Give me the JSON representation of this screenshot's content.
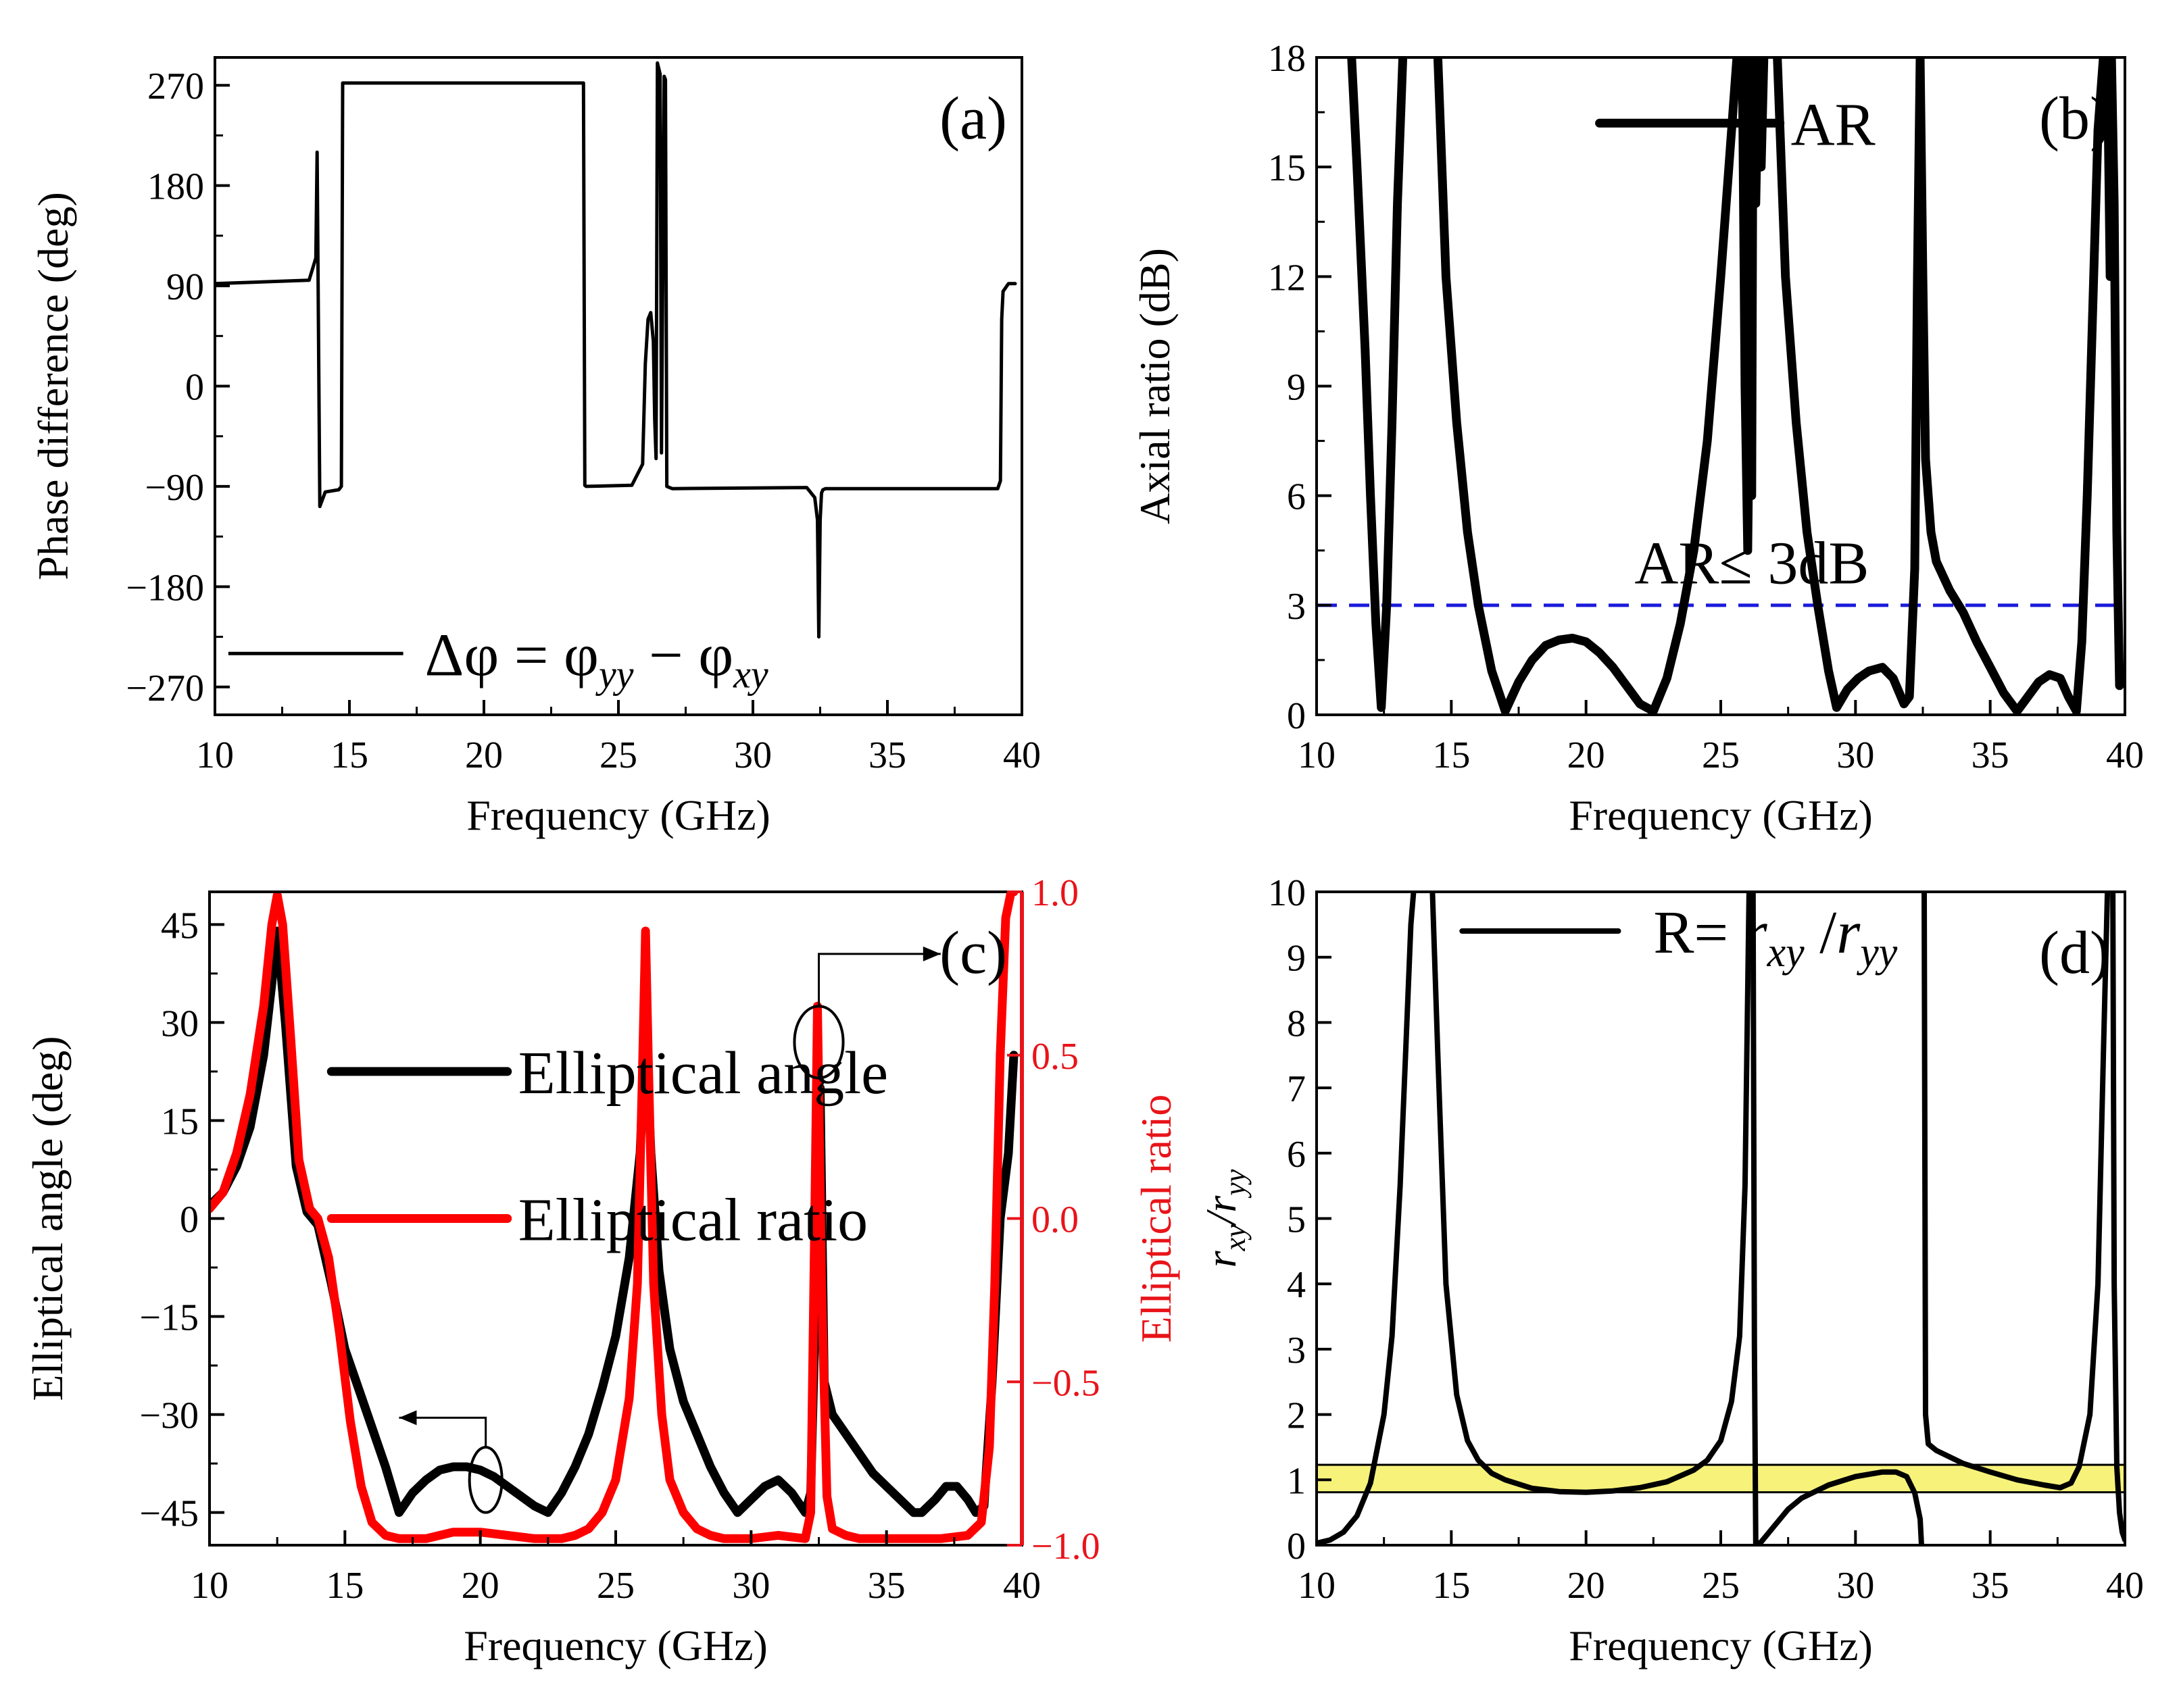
{
  "chart_data": [
    {
      "panel_label": "(a)",
      "type": "line",
      "xlabel": "Frequency (GHz)",
      "ylabel": "Phase difference (deg)",
      "xlim": [
        10,
        40
      ],
      "ylim": [
        -295,
        295
      ],
      "xticks": [
        10,
        15,
        20,
        25,
        30,
        35,
        40
      ],
      "yticks": [
        -270,
        -180,
        -90,
        0,
        90,
        180,
        270
      ],
      "xtick_labels": [
        "10",
        "15",
        "20",
        "25",
        "30",
        "35",
        "40"
      ],
      "ytick_labels": [
        "−270",
        "−180",
        "−90",
        "0",
        "90",
        "180",
        "270"
      ],
      "legend": {
        "position": "bottom-left",
        "label_parts": [
          "Δφ = φ",
          "yy",
          " − φ",
          "xy"
        ]
      },
      "series": [
        {
          "x": [
            10,
            13.5,
            13.75,
            13.8,
            13.9,
            14.1,
            14.6,
            14.7,
            14.75,
            23.7,
            23.75,
            23.8,
            25.5,
            25.9,
            26.0,
            26.1,
            26.2,
            26.3,
            26.35,
            26.4,
            26.45,
            26.55,
            26.6,
            26.7,
            26.75,
            26.8,
            27.0,
            32.0,
            32.3,
            32.4,
            32.45,
            32.5,
            32.55,
            32.6,
            32.7,
            32.8,
            33.0,
            39.1,
            39.2,
            39.25,
            39.3,
            39.5,
            39.75
          ],
          "y": [
            92,
            95,
            115,
            210,
            -108,
            -95,
            -93,
            -90,
            272,
            272,
            -89,
            -90,
            -89,
            -70,
            20,
            60,
            66,
            40,
            -30,
            -65,
            290,
            280,
            -60,
            278,
            275,
            -90,
            -92,
            -91,
            -100,
            -120,
            -225,
            -120,
            -96,
            -93,
            -92,
            -92,
            -92,
            -92,
            -85,
            60,
            85,
            92,
            92
          ]
        }
      ]
    },
    {
      "panel_label": "(b)",
      "type": "line",
      "xlabel": "Frequency (GHz)",
      "ylabel": "Axial ratio (dB)",
      "xlim": [
        10,
        40
      ],
      "ylim": [
        0,
        18
      ],
      "xticks": [
        10,
        15,
        20,
        25,
        30,
        35,
        40
      ],
      "yticks": [
        0,
        3,
        6,
        9,
        12,
        15,
        18
      ],
      "xtick_labels": [
        "10",
        "15",
        "20",
        "25",
        "30",
        "35",
        "40"
      ],
      "ytick_labels": [
        "0",
        "3",
        "6",
        "9",
        "12",
        "15",
        "18"
      ],
      "reference_line": {
        "y": 3,
        "label": "AR≤ 3dB",
        "color": "#1a1adc"
      },
      "legend": {
        "position": "top-right",
        "label": "AR"
      },
      "series": [
        {
          "name": "AR",
          "x": [
            11.3,
            11.5,
            11.8,
            12.0,
            12.2,
            12.4,
            12.6,
            12.8,
            13.0,
            13.2
          ],
          "y": [
            18,
            15,
            10,
            6,
            2.5,
            0.2,
            3,
            8,
            14,
            18
          ]
        },
        {
          "name": "AR",
          "x": [
            14.5,
            14.8,
            15.2,
            15.6,
            16.0,
            16.5,
            17.0,
            17.5,
            18.0,
            18.5,
            19.0,
            19.5,
            20.0,
            20.5,
            21.0,
            21.5,
            22.0,
            22.5,
            23.0,
            23.5,
            24.0,
            24.5,
            25.0,
            25.3,
            25.6
          ],
          "y": [
            18,
            12,
            8,
            5,
            3,
            1.2,
            0.1,
            0.9,
            1.5,
            1.9,
            2.05,
            2.1,
            2.0,
            1.7,
            1.3,
            0.8,
            0.3,
            0.1,
            1.0,
            2.5,
            4.5,
            7.5,
            12,
            15,
            18
          ]
        },
        {
          "name": "AR",
          "x": [
            25.8,
            25.9,
            26.0,
            26.05,
            26.1,
            26.15,
            26.2,
            26.3,
            26.4,
            26.5,
            26.6
          ],
          "y": [
            18,
            9,
            4.5,
            8,
            18,
            6,
            18,
            14,
            18,
            15,
            18
          ]
        },
        {
          "name": "AR",
          "x": [
            27.1,
            27.4,
            27.8,
            28.2,
            28.6,
            29.0,
            29.3,
            29.7,
            30.1,
            30.5,
            31.0,
            31.4,
            31.8,
            32.0,
            32.2,
            32.3,
            32.4,
            32.5,
            32.6,
            32.8,
            33.0,
            33.5,
            34.0,
            34.5,
            35.0,
            35.5,
            36.0,
            36.4,
            36.8,
            37.2,
            37.6,
            37.9,
            38.2,
            38.4,
            38.6,
            38.8,
            39.0,
            39.2
          ],
          "y": [
            18,
            12,
            8,
            5,
            3,
            1.2,
            0.2,
            0.7,
            1.0,
            1.2,
            1.3,
            1.0,
            0.3,
            0.5,
            4,
            12,
            18,
            12,
            7,
            5,
            4.2,
            3.4,
            2.8,
            2.0,
            1.3,
            0.6,
            0.1,
            0.5,
            0.9,
            1.1,
            1.0,
            0.5,
            0.1,
            2,
            6,
            11,
            16,
            18
          ]
        },
        {
          "name": "AR",
          "x": [
            39.35,
            39.45,
            39.5,
            39.6,
            39.7,
            39.8
          ],
          "y": [
            18,
            12,
            18,
            14,
            5,
            0.8
          ]
        }
      ]
    },
    {
      "panel_label": "(c)",
      "type": "line",
      "xlabel": "Frequency (GHz)",
      "ylabel": "Elliptical angle (deg)",
      "ylabel_right": "Elliptical ratio",
      "xlim": [
        10,
        40
      ],
      "ylim": [
        -50,
        50
      ],
      "ylim_right": [
        -1,
        1
      ],
      "right_axis_color": "#e8141a",
      "xticks": [
        10,
        15,
        20,
        25,
        30,
        35,
        40
      ],
      "yticks": [
        -45,
        -30,
        -15,
        0,
        15,
        30,
        45
      ],
      "yticks_right": [
        -1,
        -0.5,
        0,
        0.5,
        1
      ],
      "xtick_labels": [
        "10",
        "15",
        "20",
        "25",
        "30",
        "35",
        "40"
      ],
      "ytick_labels": [
        "−45",
        "−30",
        "−15",
        "0",
        "15",
        "30",
        "45"
      ],
      "ytick_labels_right": [
        "−1.0",
        "−0.5",
        "0.0",
        "0.5",
        "1.0"
      ],
      "legend": {
        "position": "center-left"
      },
      "series": [
        {
          "name": "Elliptical angle",
          "color": "#000000",
          "axis": "left",
          "x": [
            10,
            10.5,
            11,
            11.5,
            12,
            12.3,
            12.5,
            12.8,
            13.2,
            13.6,
            14.0,
            14.5,
            15.0,
            15.5,
            16.0,
            16.5,
            17.0,
            17.5,
            18.0,
            18.5,
            19.0,
            19.5,
            20.0,
            20.5,
            21.0,
            21.5,
            22.0,
            22.5,
            23.0,
            23.5,
            24.0,
            24.5,
            25.0,
            25.5,
            25.9,
            26.1,
            26.3,
            26.6,
            27.0,
            27.5,
            28.0,
            28.5,
            29.0,
            29.5,
            30.0,
            30.5,
            31.0,
            31.5,
            32.0,
            32.2,
            32.4,
            32.55,
            32.7,
            33.0,
            33.5,
            34.0,
            34.5,
            35.0,
            35.5,
            36.0,
            36.3,
            36.8,
            37.2,
            37.6,
            38.0,
            38.3,
            38.6,
            38.9,
            39.2,
            39.5,
            39.7
          ],
          "y": [
            2,
            4,
            8,
            14,
            25,
            36,
            44,
            30,
            8,
            1,
            -1,
            -10,
            -20,
            -26,
            -32,
            -38,
            -45,
            -42,
            -40,
            -38.5,
            -38,
            -38,
            -38.5,
            -39.5,
            -41,
            -42.5,
            -44,
            -45,
            -42,
            -38,
            -33,
            -26,
            -18,
            -6,
            10,
            30,
            10,
            -8,
            -20,
            -28,
            -33,
            -38,
            -42,
            -45,
            -43,
            -41,
            -40,
            -42,
            -45,
            -42,
            -10,
            20,
            -25,
            -30,
            -33,
            -36,
            -39,
            -41,
            -43,
            -45,
            -45,
            -43,
            -41,
            -41,
            -43,
            -45,
            -44,
            -25,
            0,
            10,
            25
          ]
        },
        {
          "name": "Elliptical ratio",
          "color": "#ff0000",
          "axis": "right",
          "x": [
            10,
            10.5,
            11,
            11.5,
            12,
            12.3,
            12.5,
            12.7,
            13.0,
            13.3,
            13.7,
            14.0,
            14.4,
            14.8,
            15.2,
            15.6,
            16.0,
            16.5,
            17.0,
            18.0,
            19.0,
            20.0,
            21.0,
            22.0,
            23.0,
            23.5,
            24.0,
            24.5,
            25.0,
            25.5,
            25.8,
            26.0,
            26.1,
            26.2,
            26.4,
            26.7,
            27.0,
            27.5,
            28.0,
            28.5,
            29.0,
            30.0,
            31.0,
            32.0,
            32.2,
            32.35,
            32.45,
            32.6,
            32.8,
            33.0,
            33.5,
            34.0,
            35.0,
            36.0,
            37.0,
            38.0,
            38.5,
            38.8,
            39.0,
            39.2,
            39.4,
            39.6,
            39.7
          ],
          "y": [
            0.03,
            0.08,
            0.2,
            0.38,
            0.65,
            0.9,
            0.99,
            0.9,
            0.55,
            0.18,
            0.03,
            0.0,
            -0.12,
            -0.35,
            -0.62,
            -0.82,
            -0.93,
            -0.97,
            -0.98,
            -0.98,
            -0.96,
            -0.96,
            -0.97,
            -0.98,
            -0.98,
            -0.97,
            -0.95,
            -0.9,
            -0.8,
            -0.55,
            -0.2,
            0.5,
            0.88,
            0.5,
            -0.2,
            -0.6,
            -0.8,
            -0.9,
            -0.95,
            -0.97,
            -0.98,
            -0.98,
            -0.97,
            -0.98,
            -0.9,
            0.0,
            0.65,
            -0.2,
            -0.85,
            -0.95,
            -0.97,
            -0.98,
            -0.98,
            -0.98,
            -0.98,
            -0.97,
            -0.93,
            -0.7,
            -0.2,
            0.5,
            0.92,
            1.0,
            1.0
          ]
        }
      ]
    },
    {
      "panel_label": "(d)",
      "type": "line",
      "xlabel": "Frequency (GHz)",
      "ylabel_parts": [
        "r",
        "xy",
        "/r",
        "yy"
      ],
      "xlim": [
        10,
        40
      ],
      "ylim": [
        0,
        10
      ],
      "xticks": [
        10,
        15,
        20,
        25,
        30,
        35,
        40
      ],
      "yticks": [
        0,
        1,
        2,
        3,
        4,
        5,
        6,
        7,
        8,
        9,
        10
      ],
      "xtick_labels": [
        "10",
        "15",
        "20",
        "25",
        "30",
        "35",
        "40"
      ],
      "ytick_labels": [
        "0",
        "1",
        "2",
        "3",
        "4",
        "5",
        "6",
        "7",
        "8",
        "9",
        "10"
      ],
      "band": {
        "y_range": [
          0.81,
          1.23
        ],
        "color": "#f7f27a"
      },
      "legend": {
        "position": "top-left",
        "label_parts": [
          "R= ",
          "r",
          "xy",
          " /",
          "r",
          "yy"
        ]
      },
      "series": [
        {
          "x": [
            10,
            10.5,
            11,
            11.5,
            12.0,
            12.5,
            12.8,
            13.1,
            13.3,
            13.5,
            13.6
          ],
          "y": [
            0.03,
            0.08,
            0.2,
            0.45,
            0.95,
            2.0,
            3.2,
            5.5,
            7.5,
            9.5,
            10
          ]
        },
        {
          "x": [
            14.3,
            14.5,
            14.8,
            15.2,
            15.6,
            16.0,
            16.5,
            17.0,
            18.0,
            19.0,
            20.0,
            21.0,
            22.0,
            23.0,
            24.0,
            24.5,
            25.0,
            25.4,
            25.7,
            25.9,
            26.05
          ],
          "y": [
            10,
            7.5,
            4.0,
            2.3,
            1.6,
            1.3,
            1.1,
            1.0,
            0.87,
            0.82,
            0.81,
            0.83,
            0.88,
            0.97,
            1.15,
            1.3,
            1.6,
            2.2,
            3.2,
            5.5,
            10
          ]
        },
        {
          "x": [
            26.2,
            26.25,
            26.3,
            26.5,
            27.0,
            27.5,
            28.0,
            29.0,
            30.0,
            31.0,
            31.5,
            31.9,
            32.2,
            32.4,
            32.45
          ],
          "y": [
            10,
            3,
            0.0,
            0.05,
            0.3,
            0.55,
            0.72,
            0.92,
            1.05,
            1.12,
            1.12,
            1.05,
            0.8,
            0.4,
            0.0
          ]
        },
        {
          "x": [
            32.55,
            32.6,
            32.7,
            33.0,
            33.5,
            34.0,
            35.0,
            36.0,
            37.0,
            37.6,
            38.0,
            38.3,
            38.7,
            39.0,
            39.2,
            39.35
          ],
          "y": [
            10,
            2.0,
            1.55,
            1.45,
            1.35,
            1.25,
            1.12,
            1.0,
            0.92,
            0.88,
            0.95,
            1.2,
            2.0,
            4.0,
            7.5,
            10
          ]
        },
        {
          "x": [
            39.55,
            39.6,
            39.7,
            39.8,
            39.9,
            40.0
          ],
          "y": [
            10,
            4.0,
            1.2,
            0.5,
            0.2,
            0.08
          ]
        }
      ]
    }
  ],
  "annotations": {
    "c_arrow_left_marker": {
      "panel": 2,
      "ellipse_at": [
        20.2,
        -40
      ],
      "ellipse_size": [
        0.6,
        10
      ],
      "arrow_to": [
        17.0,
        -30.5
      ]
    },
    "c_arrow_right_marker": {
      "panel": 2,
      "ellipse_at": [
        32.5,
        27
      ],
      "ellipse_size": [
        0.9,
        11
      ],
      "arrow_to": [
        37.0,
        40.5
      ]
    }
  }
}
